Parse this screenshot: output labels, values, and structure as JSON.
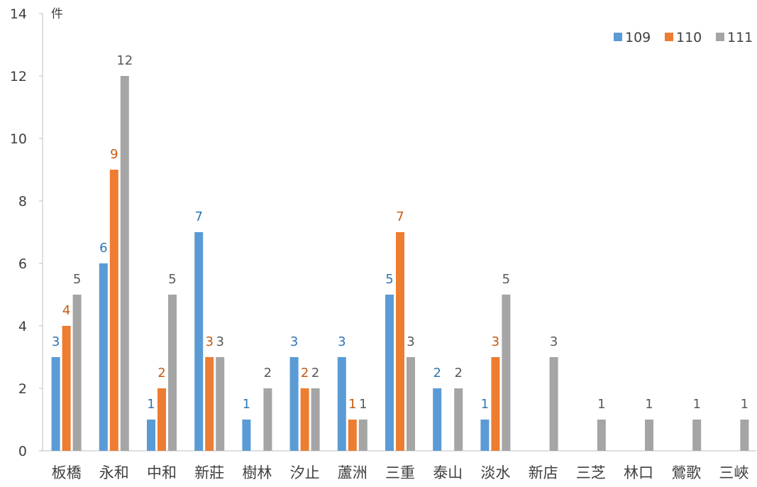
{
  "chart_data": {
    "type": "bar",
    "ylabel": "件",
    "ylim": [
      0,
      14
    ],
    "yticks": [
      0,
      2,
      4,
      6,
      8,
      10,
      12,
      14
    ],
    "legend_position": "top-right",
    "grid": false,
    "categories": [
      "板橋",
      "永和",
      "中和",
      "新莊",
      "樹林",
      "汐止",
      "蘆洲",
      "三重",
      "泰山",
      "淡水",
      "新店",
      "三芝",
      "林口",
      "鶯歌",
      "三峽"
    ],
    "series": [
      {
        "name": "109",
        "color": "#5B9BD5",
        "label_color": "#2E75B6",
        "values": [
          3,
          6,
          1,
          7,
          1,
          3,
          3,
          5,
          2,
          1,
          null,
          null,
          null,
          null,
          null
        ]
      },
      {
        "name": "110",
        "color": "#ED7D31",
        "label_color": "#C55A11",
        "values": [
          4,
          9,
          2,
          3,
          null,
          2,
          1,
          7,
          null,
          3,
          null,
          null,
          null,
          null,
          null
        ]
      },
      {
        "name": "111",
        "color": "#A5A5A5",
        "label_color": "#595959",
        "values": [
          5,
          12,
          5,
          3,
          2,
          2,
          1,
          3,
          2,
          5,
          3,
          1,
          1,
          1,
          1
        ]
      }
    ]
  }
}
